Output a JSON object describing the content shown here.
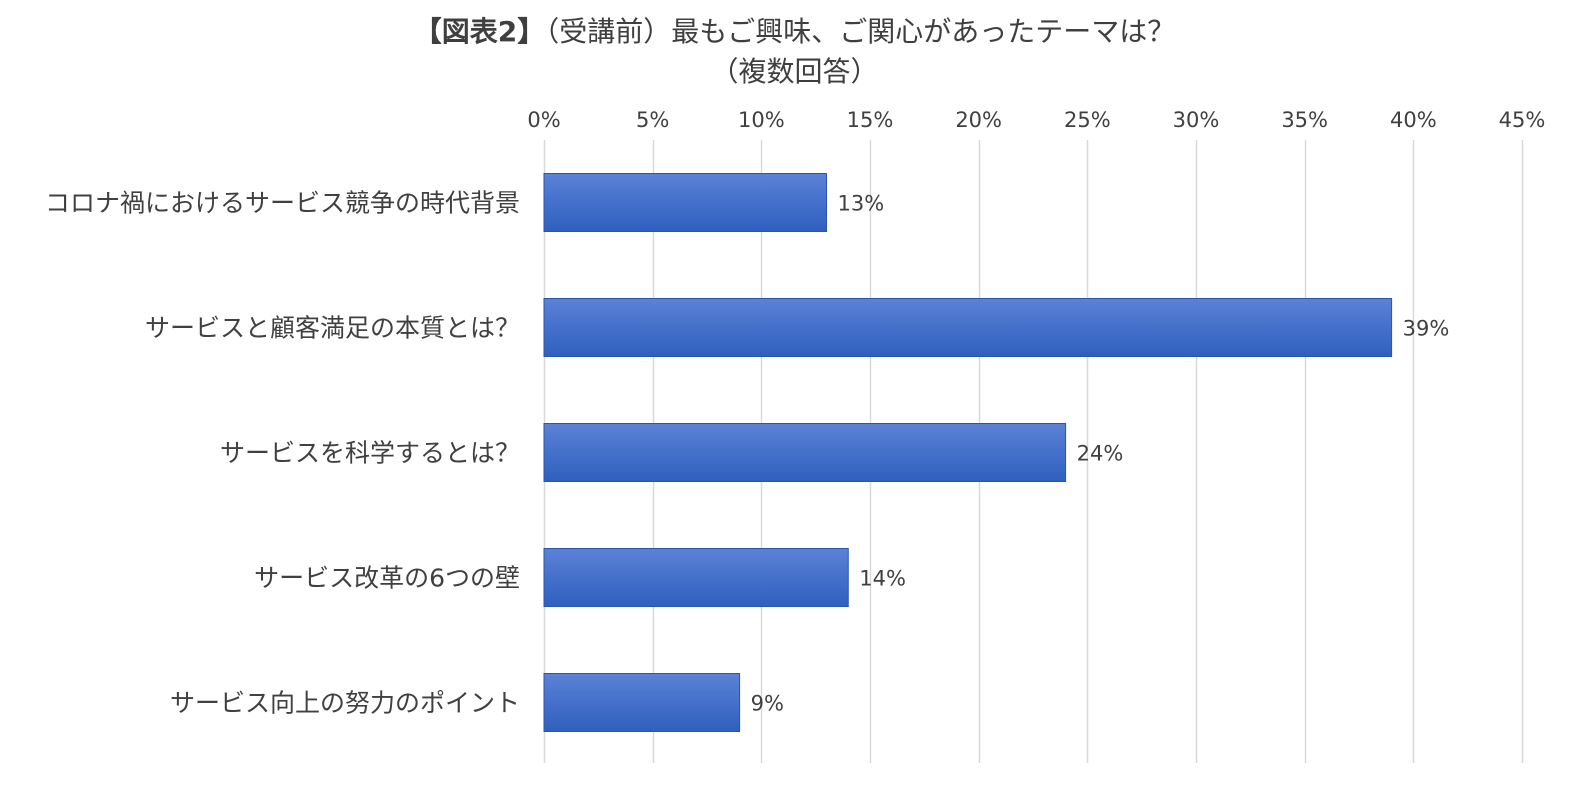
{
  "chart_data": {
    "type": "bar",
    "orientation": "horizontal",
    "title_prefix": "【図表2】",
    "title_rest": "（受講前）最もご興味、ご関心があったテーマは？",
    "subtitle": "（複数回答）",
    "categories": [
      "コロナ禍におけるサービス競争の時代背景",
      "サービスと顧客満足の本質とは？",
      "サービスを科学するとは？",
      "サービス改革の6つの壁",
      "サービス向上の努力のポイント"
    ],
    "values": [
      13,
      39,
      24,
      14,
      9
    ],
    "data_labels": [
      "13%",
      "39%",
      "24%",
      "14%",
      "9%"
    ],
    "x_ticks": [
      "0%",
      "5%",
      "10%",
      "15%",
      "20%",
      "25%",
      "30%",
      "35%",
      "40%",
      "45%"
    ],
    "x_tick_values": [
      0,
      5,
      10,
      15,
      20,
      25,
      30,
      35,
      40,
      45
    ],
    "xlim": [
      0,
      45
    ],
    "x_axis_position": "top",
    "grid": "vertical",
    "legend": "none",
    "colors": {
      "bar_top": "#5b82d6",
      "bar_bottom": "#2f5fbf",
      "grid": "#d9d9d9",
      "text": "#404040"
    }
  }
}
